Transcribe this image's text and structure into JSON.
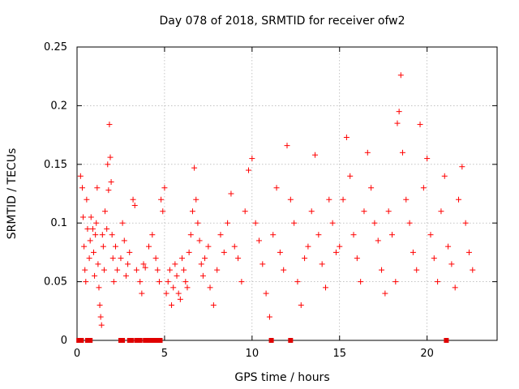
{
  "chart_data": {
    "type": "scatter",
    "title": "Day 078 of 2018, SRMTID for receiver ofw2",
    "xlabel": "GPS time / hours",
    "ylabel": "SRMTID / TECUs",
    "xlim": [
      0,
      24
    ],
    "ylim": [
      0,
      0.25
    ],
    "xticks": [
      0,
      5,
      10,
      15,
      20
    ],
    "xtick_labels": [
      "0",
      "5",
      "10",
      "15",
      "20"
    ],
    "yticks": [
      0,
      0.05,
      0.1,
      0.15,
      0.2,
      0.25
    ],
    "ytick_labels": [
      "0",
      "0.05",
      "0.1",
      "0.15",
      "0.2",
      "0.25"
    ],
    "grid": true,
    "marker": "+",
    "color": "#ff0000",
    "series": [
      {
        "name": "SRMTID",
        "points": [
          [
            0.2,
            0.14
          ],
          [
            0.3,
            0.13
          ],
          [
            0.35,
            0.105
          ],
          [
            0.4,
            0.08
          ],
          [
            0.45,
            0.06
          ],
          [
            0.5,
            0.05
          ],
          [
            0.55,
            0.12
          ],
          [
            0.6,
            0.095
          ],
          [
            0.7,
            0.07
          ],
          [
            0.75,
            0.085
          ],
          [
            0.8,
            0.105
          ],
          [
            0.9,
            0.095
          ],
          [
            0.95,
            0.075
          ],
          [
            1.0,
            0.055
          ],
          [
            1.05,
            0.09
          ],
          [
            1.1,
            0.1
          ],
          [
            1.15,
            0.13
          ],
          [
            1.2,
            0.065
          ],
          [
            1.25,
            0.045
          ],
          [
            1.3,
            0.03
          ],
          [
            1.35,
            0.02
          ],
          [
            1.4,
            0.013
          ],
          [
            1.45,
            0.09
          ],
          [
            1.5,
            0.08
          ],
          [
            1.55,
            0.06
          ],
          [
            1.6,
            0.11
          ],
          [
            1.7,
            0.095
          ],
          [
            1.75,
            0.15
          ],
          [
            1.8,
            0.128
          ],
          [
            1.85,
            0.184
          ],
          [
            1.9,
            0.156
          ],
          [
            1.95,
            0.135
          ],
          [
            2.0,
            0.09
          ],
          [
            2.05,
            0.07
          ],
          [
            2.1,
            0.05
          ],
          [
            2.2,
            0.08
          ],
          [
            2.3,
            0.06
          ],
          [
            2.5,
            0.07
          ],
          [
            2.6,
            0.1
          ],
          [
            2.7,
            0.085
          ],
          [
            2.8,
            0.055
          ],
          [
            2.9,
            0.065
          ],
          [
            3.0,
            0.075
          ],
          [
            3.2,
            0.12
          ],
          [
            3.3,
            0.115
          ],
          [
            3.4,
            0.06
          ],
          [
            3.6,
            0.05
          ],
          [
            3.7,
            0.04
          ],
          [
            3.8,
            0.065
          ],
          [
            3.9,
            0.062
          ],
          [
            4.1,
            0.08
          ],
          [
            4.3,
            0.09
          ],
          [
            4.5,
            0.07
          ],
          [
            4.6,
            0.06
          ],
          [
            4.7,
            0.05
          ],
          [
            4.8,
            0.12
          ],
          [
            4.9,
            0.11
          ],
          [
            5.0,
            0.13
          ],
          [
            5.1,
            0.04
          ],
          [
            5.2,
            0.05
          ],
          [
            5.3,
            0.06
          ],
          [
            5.4,
            0.03
          ],
          [
            5.5,
            0.045
          ],
          [
            5.6,
            0.065
          ],
          [
            5.7,
            0.055
          ],
          [
            5.8,
            0.04
          ],
          [
            5.9,
            0.035
          ],
          [
            6.0,
            0.07
          ],
          [
            6.1,
            0.06
          ],
          [
            6.2,
            0.05
          ],
          [
            6.3,
            0.045
          ],
          [
            6.4,
            0.075
          ],
          [
            6.5,
            0.09
          ],
          [
            6.6,
            0.11
          ],
          [
            6.7,
            0.147
          ],
          [
            6.8,
            0.12
          ],
          [
            6.9,
            0.1
          ],
          [
            7.0,
            0.085
          ],
          [
            7.1,
            0.065
          ],
          [
            7.2,
            0.055
          ],
          [
            7.3,
            0.07
          ],
          [
            7.5,
            0.08
          ],
          [
            7.6,
            0.045
          ],
          [
            7.8,
            0.03
          ],
          [
            8.0,
            0.06
          ],
          [
            8.2,
            0.09
          ],
          [
            8.4,
            0.075
          ],
          [
            8.6,
            0.1
          ],
          [
            8.8,
            0.125
          ],
          [
            9.0,
            0.08
          ],
          [
            9.2,
            0.07
          ],
          [
            9.4,
            0.05
          ],
          [
            9.6,
            0.11
          ],
          [
            9.8,
            0.145
          ],
          [
            10.0,
            0.155
          ],
          [
            10.2,
            0.1
          ],
          [
            10.4,
            0.085
          ],
          [
            10.6,
            0.065
          ],
          [
            10.8,
            0.04
          ],
          [
            11.0,
            0.02
          ],
          [
            11.2,
            0.09
          ],
          [
            11.4,
            0.13
          ],
          [
            11.6,
            0.075
          ],
          [
            11.8,
            0.06
          ],
          [
            12.0,
            0.166
          ],
          [
            12.2,
            0.12
          ],
          [
            12.4,
            0.1
          ],
          [
            12.6,
            0.05
          ],
          [
            12.8,
            0.03
          ],
          [
            13.0,
            0.07
          ],
          [
            13.2,
            0.08
          ],
          [
            13.4,
            0.11
          ],
          [
            13.6,
            0.158
          ],
          [
            13.8,
            0.09
          ],
          [
            14.0,
            0.065
          ],
          [
            14.2,
            0.045
          ],
          [
            14.4,
            0.12
          ],
          [
            14.6,
            0.1
          ],
          [
            14.8,
            0.075
          ],
          [
            15.0,
            0.08
          ],
          [
            15.2,
            0.12
          ],
          [
            15.4,
            0.173
          ],
          [
            15.6,
            0.14
          ],
          [
            15.8,
            0.09
          ],
          [
            16.0,
            0.07
          ],
          [
            16.2,
            0.05
          ],
          [
            16.4,
            0.11
          ],
          [
            16.6,
            0.16
          ],
          [
            16.8,
            0.13
          ],
          [
            17.0,
            0.1
          ],
          [
            17.2,
            0.085
          ],
          [
            17.4,
            0.06
          ],
          [
            17.6,
            0.04
          ],
          [
            17.8,
            0.11
          ],
          [
            18.0,
            0.09
          ],
          [
            18.2,
            0.05
          ],
          [
            18.3,
            0.185
          ],
          [
            18.4,
            0.195
          ],
          [
            18.5,
            0.226
          ],
          [
            18.6,
            0.16
          ],
          [
            18.8,
            0.12
          ],
          [
            19.0,
            0.1
          ],
          [
            19.2,
            0.075
          ],
          [
            19.4,
            0.06
          ],
          [
            19.6,
            0.184
          ],
          [
            19.8,
            0.13
          ],
          [
            20.0,
            0.155
          ],
          [
            20.2,
            0.09
          ],
          [
            20.4,
            0.07
          ],
          [
            20.6,
            0.05
          ],
          [
            20.8,
            0.11
          ],
          [
            21.0,
            0.14
          ],
          [
            21.2,
            0.08
          ],
          [
            21.4,
            0.065
          ],
          [
            21.6,
            0.045
          ],
          [
            21.8,
            0.12
          ],
          [
            22.0,
            0.148
          ],
          [
            22.2,
            0.1
          ],
          [
            22.4,
            0.075
          ],
          [
            22.6,
            0.06
          ]
        ]
      }
    ],
    "zero_points_x": [
      0.1,
      0.25,
      0.6,
      0.75,
      2.5,
      2.6,
      3.0,
      3.1,
      3.4,
      3.6,
      3.9,
      4.0,
      4.2,
      4.35,
      4.45,
      4.55,
      4.65,
      4.75,
      11.1,
      12.2,
      21.1
    ]
  }
}
